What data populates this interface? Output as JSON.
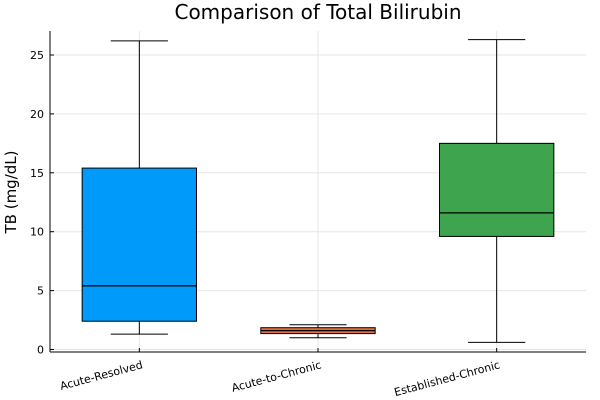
{
  "chart_data": {
    "type": "box",
    "title": "Comparison of Total Bilirubin",
    "xlabel": "",
    "ylabel": "TB (mg/dL)",
    "ylim": [
      0,
      27
    ],
    "yticks": [
      0,
      5,
      10,
      15,
      20,
      25
    ],
    "grid": true,
    "legend": "none",
    "categories": [
      "Acute-Resolved",
      "Acute-to-Chronic",
      "Established-Chronic"
    ],
    "series": [
      {
        "min": 1.3,
        "q1": 2.4,
        "median": 5.4,
        "q3": 15.4,
        "max": 26.2,
        "color": "#009AFA"
      },
      {
        "min": 1.0,
        "q1": 1.35,
        "median": 1.6,
        "q3": 1.85,
        "max": 2.1,
        "color": "#E36F47"
      },
      {
        "min": 0.6,
        "q1": 9.6,
        "median": 11.6,
        "q3": 17.5,
        "max": 26.3,
        "color": "#3EA44E"
      }
    ]
  }
}
